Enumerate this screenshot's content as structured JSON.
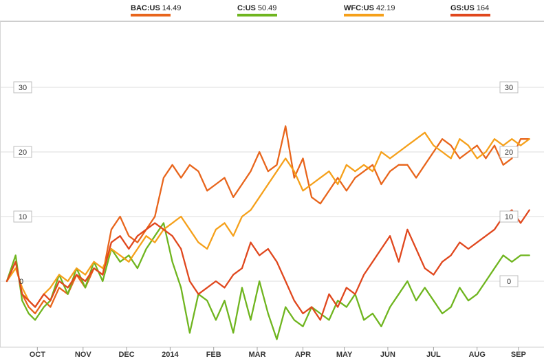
{
  "legend": [
    {
      "symbol": "BAC:US",
      "value": "14.49",
      "color": "#e8651c"
    },
    {
      "symbol": "C:US",
      "value": "50.49",
      "color": "#6fb51f"
    },
    {
      "symbol": "WFC:US",
      "value": "42.19",
      "color": "#f5a01a"
    },
    {
      "symbol": "GS:US",
      "value": "164",
      "color": "#e0471d"
    }
  ],
  "chart_data": {
    "type": "line",
    "ylim": [
      -9,
      40
    ],
    "yticks": [
      0,
      10,
      20,
      30
    ],
    "ytick_labels": [
      "0",
      "10",
      "20",
      "30"
    ],
    "xlim": [
      0,
      12.1
    ],
    "xticks": [
      0.7,
      1.75,
      2.75,
      3.75,
      4.75,
      5.75,
      6.8,
      7.75,
      8.75,
      9.8,
      10.8,
      11.75
    ],
    "xtick_labels": [
      "OCT",
      "NOV",
      "DEC",
      "2014",
      "FEB",
      "MAR",
      "APR",
      "MAY",
      "JUN",
      "JUL",
      "AUG",
      "SEP"
    ],
    "grid": true,
    "series": [
      {
        "name": "BAC:US",
        "color": "#e8651c",
        "x": [
          0,
          0.2,
          0.35,
          0.5,
          0.65,
          0.85,
          1.0,
          1.2,
          1.4,
          1.6,
          1.8,
          2.0,
          2.2,
          2.4,
          2.6,
          2.8,
          3.0,
          3.2,
          3.4,
          3.6,
          3.8,
          4.0,
          4.2,
          4.4,
          4.6,
          4.8,
          5.0,
          5.2,
          5.4,
          5.6,
          5.8,
          6.0,
          6.2,
          6.4,
          6.6,
          6.8,
          7.0,
          7.2,
          7.4,
          7.6,
          7.8,
          8.0,
          8.2,
          8.4,
          8.6,
          8.8,
          9.0,
          9.2,
          9.4,
          9.6,
          9.8,
          10.0,
          10.2,
          10.4,
          10.6,
          10.8,
          11.0,
          11.2,
          11.4,
          11.6,
          11.8,
          12.0
        ],
        "y": [
          0,
          3,
          -2,
          -4,
          -5,
          -3,
          -4,
          -1,
          -2,
          1,
          -1,
          2,
          1,
          8,
          10,
          7,
          6,
          8,
          10,
          16,
          18,
          16,
          18,
          17,
          14,
          15,
          16,
          13,
          15,
          17,
          20,
          17,
          18,
          24,
          16,
          19,
          13,
          12,
          14,
          16,
          14,
          16,
          17,
          18,
          15,
          17,
          18,
          18,
          16,
          18,
          20,
          22,
          21,
          19,
          20,
          21,
          19,
          21,
          18,
          19,
          22,
          22
        ]
      },
      {
        "name": "C:US",
        "color": "#6fb51f",
        "x": [
          0,
          0.2,
          0.35,
          0.5,
          0.65,
          0.85,
          1.0,
          1.2,
          1.4,
          1.6,
          1.8,
          2.0,
          2.2,
          2.4,
          2.6,
          2.8,
          3.0,
          3.2,
          3.4,
          3.6,
          3.8,
          4.0,
          4.2,
          4.4,
          4.6,
          4.8,
          5.0,
          5.2,
          5.4,
          5.6,
          5.8,
          6.0,
          6.2,
          6.4,
          6.6,
          6.8,
          7.0,
          7.2,
          7.4,
          7.6,
          7.8,
          8.0,
          8.2,
          8.4,
          8.6,
          8.8,
          9.0,
          9.2,
          9.4,
          9.6,
          9.8,
          10.0,
          10.2,
          10.4,
          10.6,
          10.8,
          11.0,
          11.2,
          11.4,
          11.6,
          11.8,
          12.0
        ],
        "y": [
          0,
          4,
          -3,
          -5,
          -6,
          -4,
          -3,
          1,
          -2,
          2,
          -1,
          3,
          0,
          5,
          3,
          4,
          2,
          5,
          7,
          9,
          3,
          -1,
          -8,
          -2,
          -3,
          -6,
          -3,
          -8,
          -1,
          -6,
          0,
          -5,
          -9,
          -4,
          -6,
          -7,
          -4,
          -5,
          -6,
          -3,
          -4,
          -2,
          -6,
          -5,
          -7,
          -4,
          -2,
          0,
          -3,
          -1,
          -3,
          -5,
          -4,
          -1,
          -3,
          -2,
          0,
          2,
          4,
          3,
          4,
          4
        ]
      },
      {
        "name": "WFC:US",
        "color": "#f5a01a",
        "x": [
          0,
          0.2,
          0.35,
          0.5,
          0.65,
          0.85,
          1.0,
          1.2,
          1.4,
          1.6,
          1.8,
          2.0,
          2.2,
          2.4,
          2.6,
          2.8,
          3.0,
          3.2,
          3.4,
          3.6,
          3.8,
          4.0,
          4.2,
          4.4,
          4.6,
          4.8,
          5.0,
          5.2,
          5.4,
          5.6,
          5.8,
          6.0,
          6.2,
          6.4,
          6.6,
          6.8,
          7.0,
          7.2,
          7.4,
          7.6,
          7.8,
          8.0,
          8.2,
          8.4,
          8.6,
          8.8,
          9.0,
          9.2,
          9.4,
          9.6,
          9.8,
          10.0,
          10.2,
          10.4,
          10.6,
          10.8,
          11.0,
          11.2,
          11.4,
          11.6,
          11.8,
          12.0
        ],
        "y": [
          0,
          2,
          -1,
          -3,
          -4,
          -2,
          -1,
          1,
          0,
          2,
          1,
          3,
          2,
          5,
          4,
          3,
          5,
          7,
          6,
          8,
          9,
          10,
          8,
          6,
          5,
          8,
          9,
          7,
          10,
          11,
          13,
          15,
          17,
          19,
          17,
          14,
          15,
          16,
          17,
          15,
          18,
          17,
          18,
          17,
          20,
          19,
          20,
          21,
          22,
          23,
          21,
          20,
          19,
          22,
          21,
          19,
          20,
          22,
          21,
          22,
          21,
          22
        ]
      },
      {
        "name": "GS:US",
        "color": "#e0471d",
        "x": [
          0,
          0.2,
          0.35,
          0.5,
          0.65,
          0.85,
          1.0,
          1.2,
          1.4,
          1.6,
          1.8,
          2.0,
          2.2,
          2.4,
          2.6,
          2.8,
          3.0,
          3.2,
          3.4,
          3.6,
          3.8,
          4.0,
          4.2,
          4.4,
          4.6,
          4.8,
          5.0,
          5.2,
          5.4,
          5.6,
          5.8,
          6.0,
          6.2,
          6.4,
          6.6,
          6.8,
          7.0,
          7.2,
          7.4,
          7.6,
          7.8,
          8.0,
          8.2,
          8.4,
          8.6,
          8.8,
          9.0,
          9.2,
          9.4,
          9.6,
          9.8,
          10.0,
          10.2,
          10.4,
          10.6,
          10.8,
          11.0,
          11.2,
          11.4,
          11.6,
          11.8,
          12.0
        ],
        "y": [
          0,
          3,
          -2,
          -3,
          -4,
          -2,
          -3,
          0,
          -1,
          1,
          0,
          2,
          1,
          6,
          7,
          5,
          7,
          8,
          9,
          8,
          7,
          5,
          0,
          -2,
          -1,
          0,
          -1,
          1,
          2,
          6,
          4,
          5,
          3,
          0,
          -3,
          -5,
          -4,
          -6,
          -2,
          -4,
          -1,
          -2,
          1,
          3,
          5,
          7,
          3,
          8,
          5,
          2,
          1,
          3,
          4,
          6,
          5,
          6,
          7,
          8,
          10,
          11,
          9,
          11
        ]
      }
    ]
  }
}
